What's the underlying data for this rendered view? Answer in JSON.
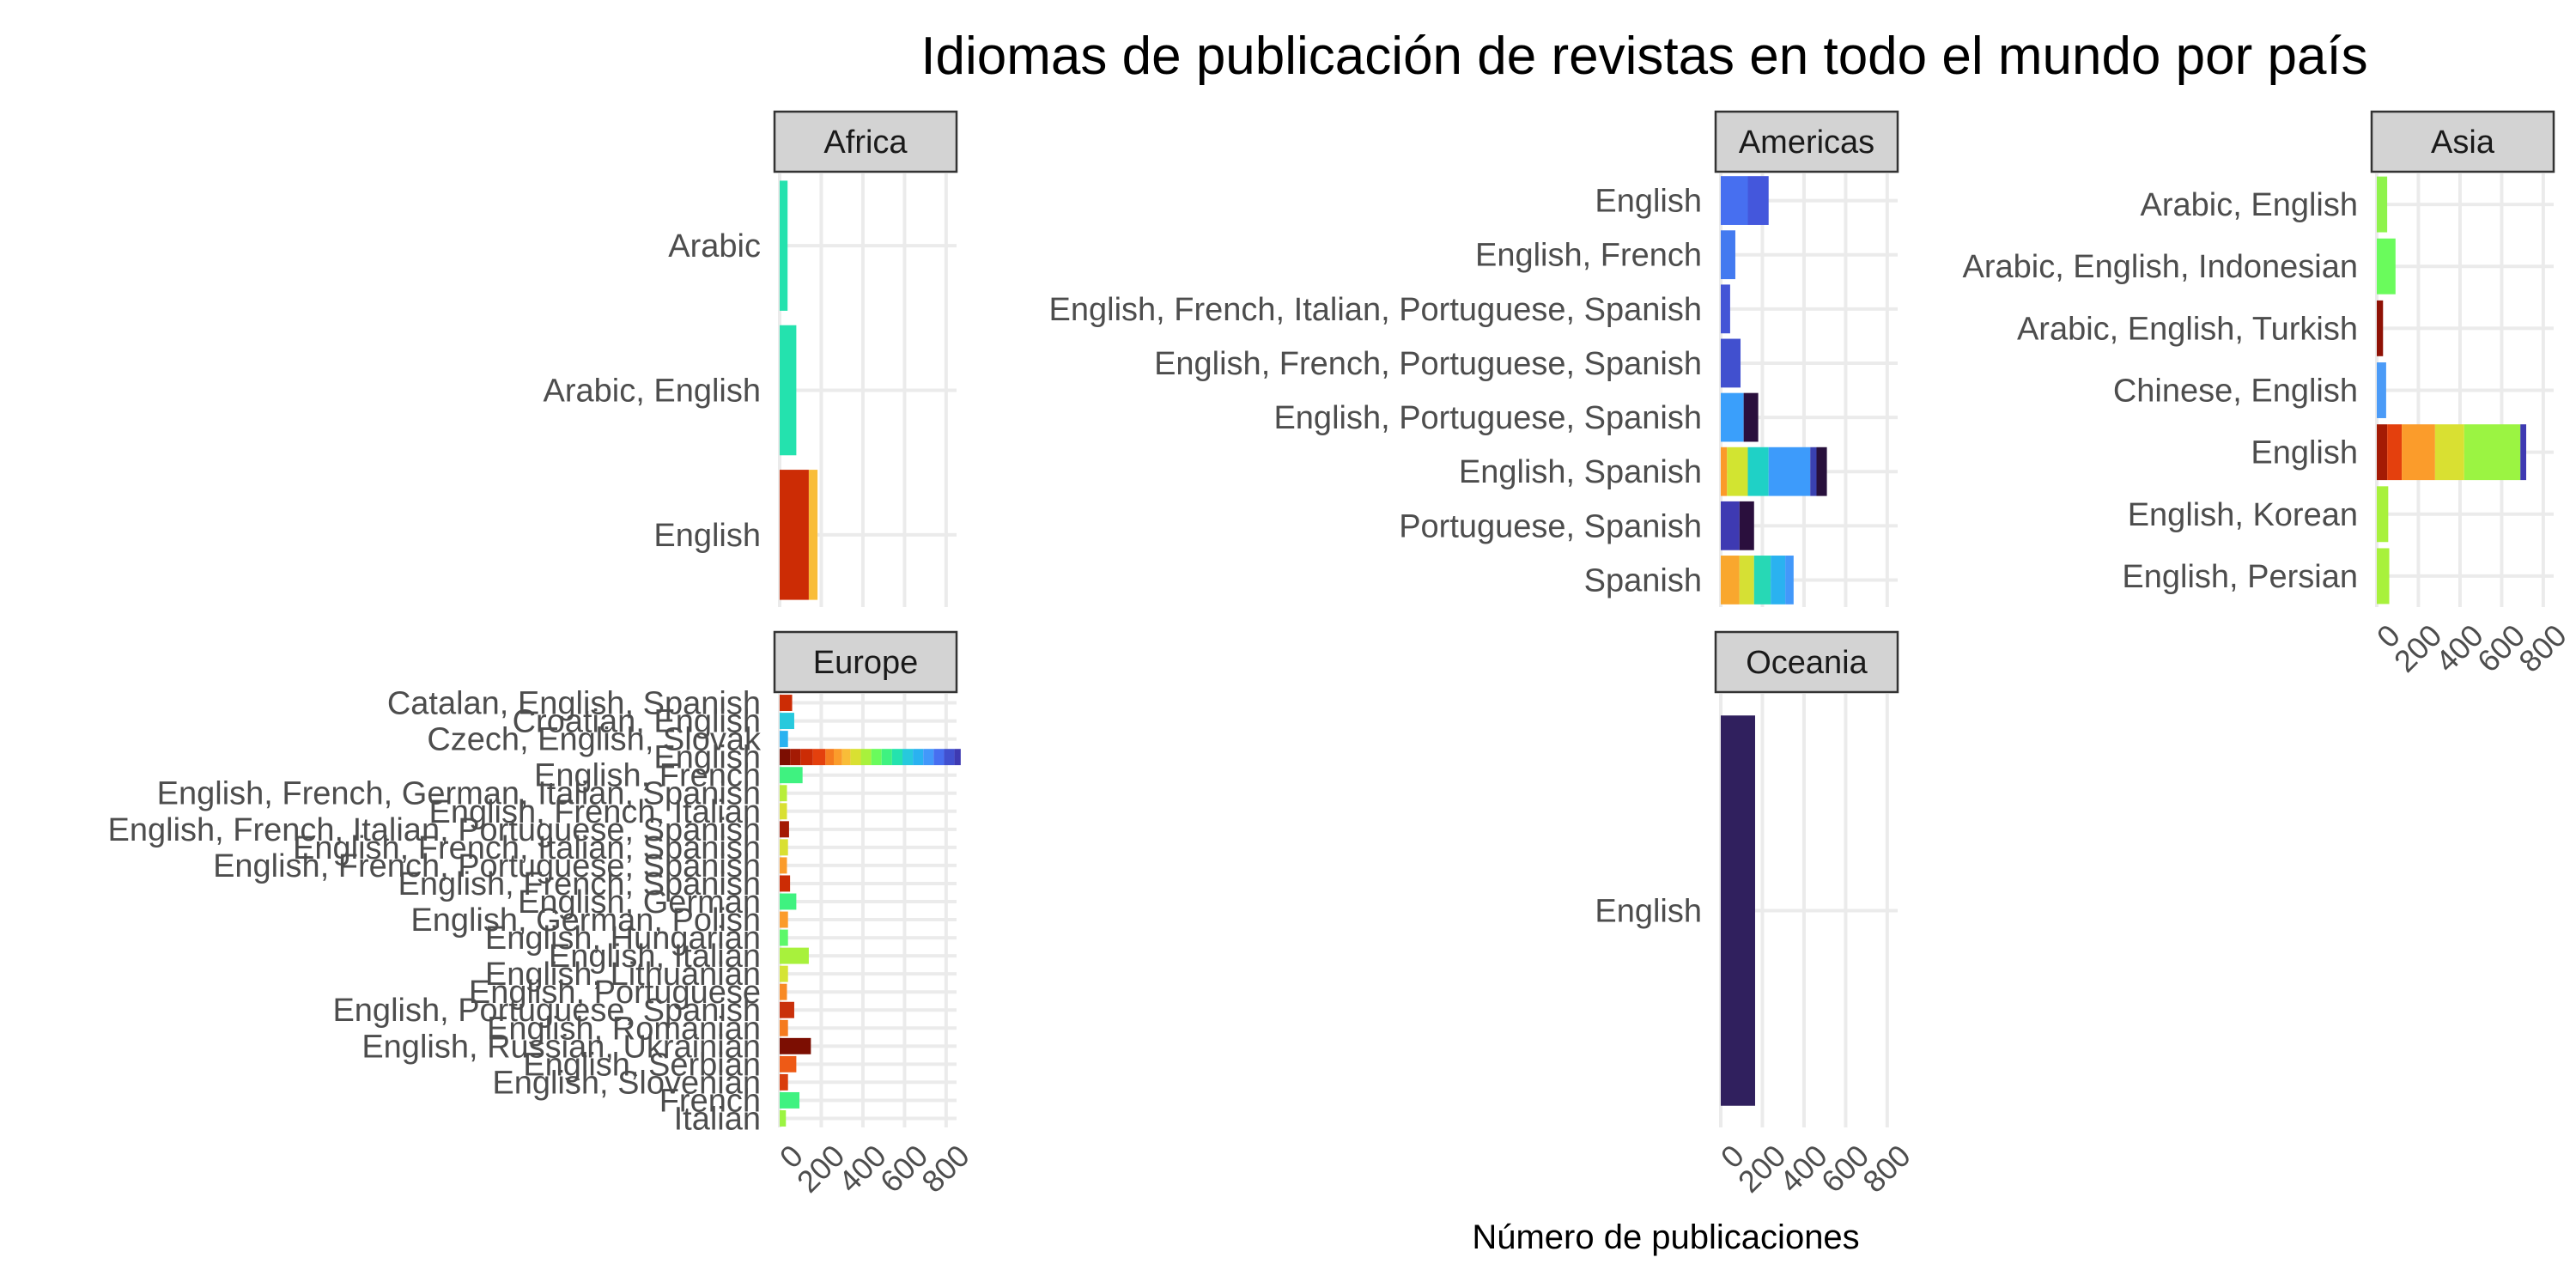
{
  "chart_data": {
    "type": "bar",
    "orientation": "horizontal",
    "stacked": true,
    "title": "Idiomas de publicación de revistas en todo el mundo por país",
    "xlabel": "Número de publicaciones",
    "ylabel": "",
    "xlim": [
      0,
      850
    ],
    "xticks": [
      "0",
      "200",
      "400",
      "600",
      "800"
    ],
    "tick_values": [
      0,
      200,
      400,
      600,
      800
    ],
    "grid": true,
    "legend": "none",
    "facets": [
      {
        "name": "Africa",
        "categories": [
          {
            "label": "English",
            "segments": [
              {
                "value": 140,
                "color": "#cc2c05"
              },
              {
                "value": 42,
                "color": "#f9bd38"
              }
            ]
          },
          {
            "label": "Arabic, English",
            "segments": [
              {
                "value": 80,
                "color": "#24e2ae"
              }
            ]
          },
          {
            "label": "Arabic",
            "segments": [
              {
                "value": 38,
                "color": "#24e2ae"
              }
            ]
          }
        ]
      },
      {
        "name": "Americas",
        "categories": [
          {
            "label": "Spanish",
            "segments": [
              {
                "value": 90,
                "color": "#f9a72e"
              },
              {
                "value": 70,
                "color": "#d6e034"
              },
              {
                "value": 80,
                "color": "#27d8b5"
              },
              {
                "value": 70,
                "color": "#2ab2f0"
              },
              {
                "value": 40,
                "color": "#4298fa"
              }
            ]
          },
          {
            "label": "Portuguese, Spanish",
            "segments": [
              {
                "value": 90,
                "color": "#3e3ab2"
              },
              {
                "value": 70,
                "color": "#2a0f3d"
              }
            ]
          },
          {
            "label": "English, Spanish",
            "segments": [
              {
                "value": 30,
                "color": "#fb9a2a"
              },
              {
                "value": 100,
                "color": "#d2e431"
              },
              {
                "value": 100,
                "color": "#1fd1c6"
              },
              {
                "value": 200,
                "color": "#3d9bfb"
              },
              {
                "value": 30,
                "color": "#3a41b0"
              },
              {
                "value": 50,
                "color": "#28103c"
              }
            ]
          },
          {
            "label": "English, Portuguese, Spanish",
            "segments": [
              {
                "value": 110,
                "color": "#3a9ffb"
              },
              {
                "value": 70,
                "color": "#2a0f3d"
              }
            ]
          },
          {
            "label": "English, French, Portuguese, Spanish",
            "segments": [
              {
                "value": 95,
                "color": "#4150cf"
              }
            ]
          },
          {
            "label": "English, French, Italian, Portuguese, Spanish",
            "segments": [
              {
                "value": 45,
                "color": "#4455d6"
              }
            ]
          },
          {
            "label": "English, French",
            "segments": [
              {
                "value": 70,
                "color": "#437af0"
              }
            ]
          },
          {
            "label": "English",
            "segments": [
              {
                "value": 130,
                "color": "#476ff0"
              },
              {
                "value": 100,
                "color": "#4457dc"
              }
            ]
          }
        ]
      },
      {
        "name": "Asia",
        "categories": [
          {
            "label": "English, Persian",
            "segments": [
              {
                "value": 60,
                "color": "#a8f13c"
              }
            ]
          },
          {
            "label": "English, Korean",
            "segments": [
              {
                "value": 55,
                "color": "#a8f13c"
              }
            ]
          },
          {
            "label": "English",
            "segments": [
              {
                "value": 50,
                "color": "#a41a04"
              },
              {
                "value": 70,
                "color": "#e4400d"
              },
              {
                "value": 160,
                "color": "#fb9c2b"
              },
              {
                "value": 140,
                "color": "#d9e032"
              },
              {
                "value": 270,
                "color": "#9bf442"
              },
              {
                "value": 28,
                "color": "#3e3ab2"
              }
            ]
          },
          {
            "label": "Chinese, English",
            "segments": [
              {
                "value": 45,
                "color": "#4b9bf7"
              }
            ]
          },
          {
            "label": "Arabic, English, Turkish",
            "segments": [
              {
                "value": 30,
                "color": "#8f1105"
              }
            ]
          },
          {
            "label": "Arabic, English, Indonesian",
            "segments": [
              {
                "value": 90,
                "color": "#6afb5c"
              }
            ]
          },
          {
            "label": "Arabic, English",
            "segments": [
              {
                "value": 50,
                "color": "#8ff34c"
              }
            ]
          }
        ]
      },
      {
        "name": "Europe",
        "categories": [
          {
            "label": "Italian",
            "segments": [
              {
                "value": 30,
                "color": "#9bf442"
              }
            ]
          },
          {
            "label": "French",
            "segments": [
              {
                "value": 95,
                "color": "#3ff280"
              }
            ]
          },
          {
            "label": "English, Slovenian",
            "segments": [
              {
                "value": 40,
                "color": "#d93d0c"
              }
            ]
          },
          {
            "label": "English, Serbian",
            "segments": [
              {
                "value": 80,
                "color": "#ee5a16"
              }
            ]
          },
          {
            "label": "English, Russian, Ukrainian",
            "segments": [
              {
                "value": 150,
                "color": "#7c0e02"
              }
            ]
          },
          {
            "label": "English, Romanian",
            "segments": [
              {
                "value": 40,
                "color": "#f57b1f"
              }
            ]
          },
          {
            "label": "English, Portuguese, Spanish",
            "segments": [
              {
                "value": 70,
                "color": "#c9300a"
              }
            ]
          },
          {
            "label": "English, Portuguese",
            "segments": [
              {
                "value": 35,
                "color": "#f88a25"
              }
            ]
          },
          {
            "label": "English, Lithuanian",
            "segments": [
              {
                "value": 40,
                "color": "#d5e435"
              }
            ]
          },
          {
            "label": "English, Italian",
            "segments": [
              {
                "value": 140,
                "color": "#a8f13c"
              }
            ]
          },
          {
            "label": "English, Hungarian",
            "segments": [
              {
                "value": 40,
                "color": "#5cf86a"
              }
            ]
          },
          {
            "label": "English, German, Polish",
            "segments": [
              {
                "value": 40,
                "color": "#fb9c2b"
              }
            ]
          },
          {
            "label": "English, German",
            "segments": [
              {
                "value": 80,
                "color": "#3ff280"
              }
            ]
          },
          {
            "label": "English, French, Spanish",
            "segments": [
              {
                "value": 50,
                "color": "#cc2c05"
              }
            ]
          },
          {
            "label": "English, French, Portuguese, Spanish",
            "segments": [
              {
                "value": 35,
                "color": "#fb9c2b"
              }
            ]
          },
          {
            "label": "English, French, Italian, Spanish",
            "segments": [
              {
                "value": 40,
                "color": "#d9e032"
              }
            ]
          },
          {
            "label": "English, French, Italian, Portuguese, Spanish",
            "segments": [
              {
                "value": 45,
                "color": "#a41a04"
              }
            ]
          },
          {
            "label": "English, French, Italian",
            "segments": [
              {
                "value": 35,
                "color": "#d9e032"
              }
            ]
          },
          {
            "label": "English, French, German, Italian, Spanish",
            "segments": [
              {
                "value": 35,
                "color": "#b8ee3a"
              }
            ]
          },
          {
            "label": "English, French",
            "segments": [
              {
                "value": 110,
                "color": "#3ff280"
              }
            ]
          },
          {
            "label": "English",
            "segments": [
              {
                "value": 50,
                "color": "#7c0e02"
              },
              {
                "value": 50,
                "color": "#a41a04"
              },
              {
                "value": 60,
                "color": "#cc2c05"
              },
              {
                "value": 60,
                "color": "#e4400d"
              },
              {
                "value": 40,
                "color": "#f57b1f"
              },
              {
                "value": 40,
                "color": "#fb9c2b"
              },
              {
                "value": 40,
                "color": "#f9bd38"
              },
              {
                "value": 50,
                "color": "#d9e032"
              },
              {
                "value": 50,
                "color": "#a8f13c"
              },
              {
                "value": 50,
                "color": "#6afb5c"
              },
              {
                "value": 50,
                "color": "#3ff280"
              },
              {
                "value": 50,
                "color": "#24e2ae"
              },
              {
                "value": 50,
                "color": "#27c9dd"
              },
              {
                "value": 50,
                "color": "#2ab2f0"
              },
              {
                "value": 50,
                "color": "#4298fa"
              },
              {
                "value": 50,
                "color": "#476ff0"
              },
              {
                "value": 50,
                "color": "#4150cf"
              },
              {
                "value": 30,
                "color": "#3e3ab2"
              }
            ]
          },
          {
            "label": "Czech, English, Slovak",
            "segments": [
              {
                "value": 40,
                "color": "#2ab2f0"
              }
            ]
          },
          {
            "label": "Croatian, English",
            "segments": [
              {
                "value": 70,
                "color": "#27c9dd"
              }
            ]
          },
          {
            "label": "Catalan, English, Spanish",
            "segments": [
              {
                "value": 60,
                "color": "#cc2c05"
              }
            ]
          }
        ]
      },
      {
        "name": "Oceania",
        "categories": [
          {
            "label": "English",
            "segments": [
              {
                "value": 165,
                "color": "#30205e"
              }
            ]
          }
        ]
      }
    ]
  }
}
